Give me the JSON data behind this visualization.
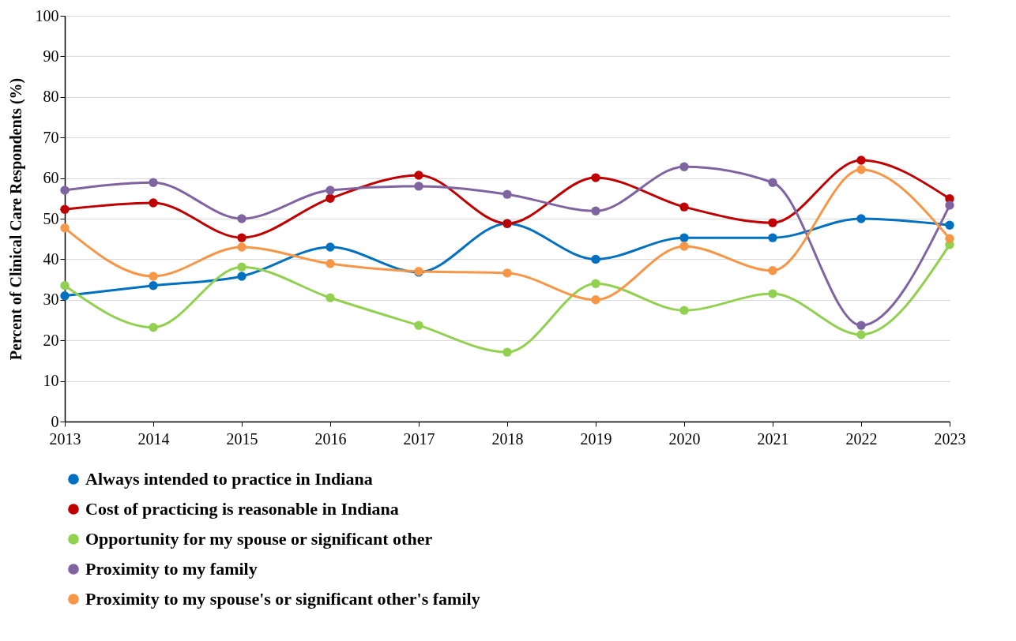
{
  "chart_data": {
    "type": "line",
    "ylabel": "Percent of Clinical Care Respondents (%)",
    "categories": [
      "2013",
      "2014",
      "2015",
      "2016",
      "2017",
      "2018",
      "2019",
      "2020",
      "2021",
      "2022",
      "2023"
    ],
    "series": [
      {
        "name": "Always intended to practice in Indiana",
        "color": "#0070c0",
        "values": [
          31,
          33.5,
          35.8,
          43,
          36.8,
          48.8,
          40,
          45.3,
          45.3,
          50,
          48.4
        ]
      },
      {
        "name": "Cost of practicing is reasonable in Indiana",
        "color": "#c00000",
        "values": [
          52.3,
          53.9,
          45.3,
          55,
          60.7,
          48.8,
          60.1,
          52.9,
          49,
          64.4,
          54.9
        ]
      },
      {
        "name": "Opportunity for my spouse or significant other",
        "color": "#92d050",
        "values": [
          33.5,
          23.2,
          38.1,
          30.5,
          23.7,
          17.1,
          34,
          27.4,
          31.5,
          21.4,
          43.6
        ]
      },
      {
        "name": "Proximity to my family",
        "color": "#8064a2",
        "values": [
          57,
          58.9,
          50,
          57,
          58,
          56,
          51.9,
          62.8,
          58.9,
          23.7,
          53.3
        ]
      },
      {
        "name": "Proximity to my spouse's or significant other's family",
        "color": "#f79646",
        "values": [
          47.7,
          35.8,
          43,
          38.9,
          37,
          36.6,
          30,
          43.2,
          37.2,
          62.1,
          45.1
        ]
      }
    ],
    "ylim": [
      0,
      100
    ],
    "yticks": [
      0,
      10,
      20,
      30,
      40,
      50,
      60,
      70,
      80,
      90,
      100
    ],
    "grid": "y",
    "legend": "bottom",
    "marker": "circle",
    "line_style": "solid"
  }
}
